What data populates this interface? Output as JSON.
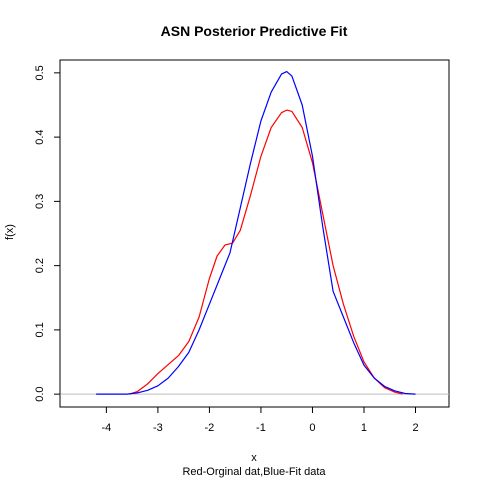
{
  "chart_data": {
    "type": "line",
    "title": "ASN Posterior Predictive Fit",
    "xlabel": "x",
    "ylabel": "f(x)",
    "caption": "Red-Orginal dat,Blue-Fit data",
    "xlim": [
      -4.9,
      2.65
    ],
    "ylim": [
      -0.02,
      0.52
    ],
    "x_ticks": [
      -4,
      -3,
      -2,
      -1,
      0,
      1,
      2
    ],
    "x_tick_labels": [
      "-4",
      "-3",
      "-2",
      "-1",
      "0",
      "1",
      "2"
    ],
    "y_ticks": [
      0.0,
      0.1,
      0.2,
      0.3,
      0.4,
      0.5
    ],
    "y_tick_labels": [
      "0.0",
      "0.1",
      "0.2",
      "0.3",
      "0.4",
      "0.5"
    ],
    "grid": false,
    "reference_line": {
      "y": 0,
      "color": "#bebebe"
    },
    "series": [
      {
        "color": "#ff0000",
        "x": [
          -3.55,
          -3.4,
          -3.2,
          -3.0,
          -2.8,
          -2.6,
          -2.4,
          -2.2,
          -2.0,
          -1.85,
          -1.7,
          -1.55,
          -1.4,
          -1.2,
          -1.0,
          -0.8,
          -0.6,
          -0.5,
          -0.4,
          -0.2,
          0.0,
          0.2,
          0.4,
          0.6,
          0.8,
          1.0,
          1.2,
          1.4,
          1.6,
          1.75
        ],
        "y": [
          0.0,
          0.004,
          0.016,
          0.032,
          0.046,
          0.06,
          0.082,
          0.12,
          0.18,
          0.215,
          0.232,
          0.235,
          0.255,
          0.31,
          0.37,
          0.415,
          0.438,
          0.442,
          0.44,
          0.415,
          0.36,
          0.28,
          0.2,
          0.14,
          0.09,
          0.05,
          0.025,
          0.01,
          0.003,
          0.0
        ]
      },
      {
        "color": "#0000ff",
        "x": [
          -4.2,
          -3.6,
          -3.4,
          -3.2,
          -3.0,
          -2.8,
          -2.6,
          -2.4,
          -2.2,
          -2.0,
          -1.8,
          -1.6,
          -1.4,
          -1.2,
          -1.0,
          -0.8,
          -0.6,
          -0.5,
          -0.4,
          -0.2,
          0.0,
          0.2,
          0.4,
          0.6,
          0.8,
          1.0,
          1.2,
          1.4,
          1.6,
          1.8,
          2.0
        ],
        "y": [
          0.0,
          0.0,
          0.002,
          0.006,
          0.013,
          0.025,
          0.043,
          0.065,
          0.1,
          0.14,
          0.18,
          0.22,
          0.29,
          0.36,
          0.425,
          0.47,
          0.498,
          0.502,
          0.495,
          0.45,
          0.37,
          0.26,
          0.16,
          0.12,
          0.08,
          0.045,
          0.025,
          0.012,
          0.005,
          0.001,
          0.0
        ]
      }
    ]
  }
}
